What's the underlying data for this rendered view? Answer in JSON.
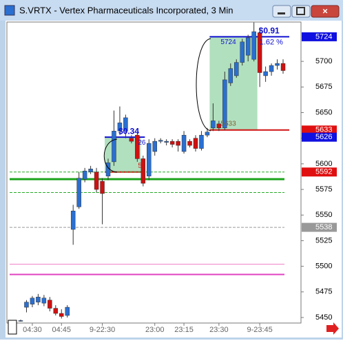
{
  "chart_data": {
    "type": "candlestick",
    "title": "S.VRTX - Vertex Pharmaceuticals Incorporated, 3 Min",
    "categories": [
      null,
      null,
      "04:30",
      null,
      null,
      null,
      null,
      "04:45",
      null,
      null,
      null,
      null,
      null,
      null,
      "9-22:30",
      null,
      null,
      null,
      null,
      null,
      null,
      null,
      null,
      "23:00",
      null,
      null,
      null,
      null,
      "23:15",
      null,
      null,
      null,
      null,
      null,
      "23:30",
      null,
      null,
      null,
      null,
      null,
      null,
      "9-23:45",
      null,
      null,
      null,
      null
    ],
    "open": [
      5447,
      5460,
      5463,
      5465,
      5464,
      5467,
      5459,
      5454,
      5452,
      5536,
      5558,
      5585,
      5592,
      5592,
      5583,
      5588,
      5602,
      5632,
      5632,
      5625,
      5628,
      5605,
      5588,
      5612,
      5622,
      5621,
      5622,
      5622,
      5612,
      5622,
      5625,
      5615,
      5628,
      5635,
      5639,
      5635,
      5679,
      5686,
      5699,
      5706,
      5702,
      5728,
      5686,
      5690,
      5696,
      5698
    ],
    "high": [
      5448,
      5467,
      5471,
      5473,
      5472,
      5470,
      5462,
      5458,
      5462,
      5560,
      5592,
      5596,
      5598,
      5596,
      5586,
      5605,
      5652,
      5656,
      5648,
      5628,
      5630,
      5608,
      5624,
      5625,
      5625,
      5624,
      5624,
      5624,
      5632,
      5624,
      5628,
      5632,
      5635,
      5659,
      5642,
      5690,
      5698,
      5702,
      5722,
      5726,
      5738,
      5733,
      5695,
      5698,
      5702,
      5702
    ],
    "low": [
      5446,
      5455,
      5460,
      5462,
      5461,
      5456,
      5452,
      5449,
      5450,
      5521,
      5556,
      5582,
      5590,
      5572,
      5541,
      5584,
      5598,
      5628,
      5625,
      5620,
      5602,
      5578,
      5584,
      5608,
      5620,
      5618,
      5616,
      5612,
      5610,
      5616,
      5612,
      5613,
      5626,
      5632,
      5632,
      5633,
      5676,
      5684,
      5696,
      5700,
      5700,
      5675,
      5680,
      5686,
      5692,
      5688
    ],
    "close": [
      5447,
      5465,
      5469,
      5470,
      5469,
      5459,
      5454,
      5451,
      5460,
      5554,
      5586,
      5593,
      5595,
      5575,
      5571,
      5601,
      5632,
      5640,
      5645,
      5622,
      5605,
      5581,
      5620,
      5622,
      5623,
      5622,
      5619,
      5618,
      5628,
      5618,
      5615,
      5628,
      5631,
      5642,
      5635,
      5682,
      5693,
      5699,
      5719,
      5723,
      5729,
      5689,
      5690,
      5696,
      5698,
      5691
    ],
    "up_color": "#2a6fd1",
    "down_color": "#d01010",
    "ylim": [
      5444.6,
      5738.4
    ],
    "yticks": [
      5450,
      5475,
      5500,
      5525,
      5550,
      5575,
      5600,
      5625,
      5650,
      5675,
      5700
    ],
    "levels": [
      {
        "value": 5592,
        "color": "#22aa22",
        "style": "dashed"
      },
      {
        "value": 5585,
        "color": "#1aa31a",
        "style": "solid"
      },
      {
        "value": 5572,
        "color": "#22aa22",
        "style": "dashed"
      },
      {
        "value": 5538,
        "color": "#999999",
        "style": "dashed"
      },
      {
        "value": 5502,
        "color": "#f07cc8",
        "style": "solid"
      },
      {
        "value": 5492,
        "color": "#e040c0",
        "style": "thick"
      }
    ],
    "price_labels": [
      {
        "value": 5724,
        "color": "#1010e0"
      },
      {
        "value": 5633,
        "color": "#e01010"
      },
      {
        "value": 5626,
        "color": "#1010e0"
      },
      {
        "value": 5592,
        "color": "#e01010"
      },
      {
        "value": 5538,
        "color": "#999999"
      }
    ],
    "boxes": [
      {
        "start": 15,
        "end": 20,
        "top": 5626,
        "bottom": 5592,
        "change": "$0.34",
        "top_label": "26",
        "bottom_label": "5"
      },
      {
        "start": 33,
        "end": 40,
        "top": 5724,
        "bottom": 5633,
        "change": "$0.91",
        "percent": "1.62 %",
        "top_label": "5724",
        "bottom_label": "5633"
      }
    ]
  }
}
